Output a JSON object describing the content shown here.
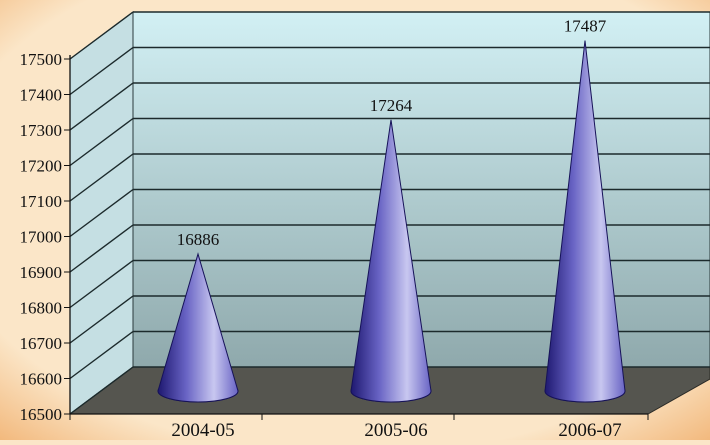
{
  "chart_data": {
    "type": "bar",
    "style": "3d-cone",
    "categories": [
      "2004-05",
      "2005-06",
      "2006-07"
    ],
    "values": [
      16886,
      17264,
      17487
    ],
    "ylim": [
      16500,
      17500
    ],
    "y_ticks": [
      16500,
      16600,
      16700,
      16800,
      16900,
      17000,
      17100,
      17200,
      17300,
      17400,
      17500
    ],
    "data_labels": [
      "16886",
      "17264",
      "17487"
    ],
    "grid": true,
    "legend": "none",
    "colors": {
      "page_background": "#fbe6c8",
      "page_gradient_edge": "#f2b77a",
      "wall_top": "#d2f0f4",
      "wall_bottom": "#8fa9ac",
      "side_wall": "#c5dfe3",
      "floor": "#55554f",
      "cone_dark": "#1e1870",
      "cone_mid": "#6863c4",
      "cone_light": "#c8c7f0"
    }
  }
}
